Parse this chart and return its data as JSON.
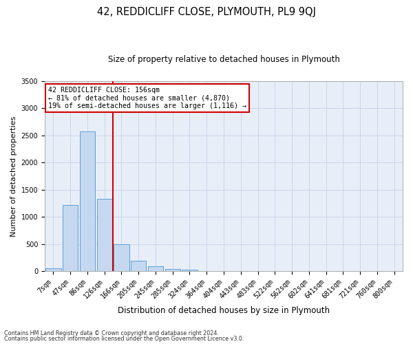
{
  "title": "42, REDDICLIFF CLOSE, PLYMOUTH, PL9 9QJ",
  "subtitle": "Size of property relative to detached houses in Plymouth",
  "xlabel": "Distribution of detached houses by size in Plymouth",
  "ylabel": "Number of detached properties",
  "footer_line1": "Contains HM Land Registry data © Crown copyright and database right 2024.",
  "footer_line2": "Contains public sector information licensed under the Open Government Licence v3.0.",
  "annotation_line1": "42 REDDICLIFF CLOSE: 156sqm",
  "annotation_line2": "← 81% of detached houses are smaller (4,870)",
  "annotation_line3": "19% of semi-detached houses are larger (1,116) →",
  "bar_categories": [
    "7sqm",
    "47sqm",
    "86sqm",
    "126sqm",
    "166sqm",
    "205sqm",
    "245sqm",
    "285sqm",
    "324sqm",
    "364sqm",
    "404sqm",
    "443sqm",
    "483sqm",
    "522sqm",
    "562sqm",
    "602sqm",
    "641sqm",
    "681sqm",
    "721sqm",
    "760sqm",
    "800sqm"
  ],
  "bar_values": [
    50,
    1220,
    2570,
    1330,
    500,
    195,
    90,
    45,
    30,
    0,
    0,
    0,
    0,
    0,
    0,
    0,
    0,
    0,
    0,
    0,
    0
  ],
  "bar_color": "#c5d8f0",
  "bar_edge_color": "#5a9fd4",
  "vline_color": "#cc0000",
  "vline_x": 3.5,
  "ylim": [
    0,
    3500
  ],
  "yticks": [
    0,
    500,
    1000,
    1500,
    2000,
    2500,
    3000,
    3500
  ],
  "bg_color": "#e8eef8",
  "annotation_box_color": "#cc0000",
  "grid_color": "#c8d0e8",
  "title_fontsize": 10.5,
  "subtitle_fontsize": 8.5,
  "ylabel_fontsize": 8,
  "xlabel_fontsize": 8.5,
  "tick_fontsize": 7,
  "footer_fontsize": 5.8,
  "annotation_fontsize": 7.2
}
